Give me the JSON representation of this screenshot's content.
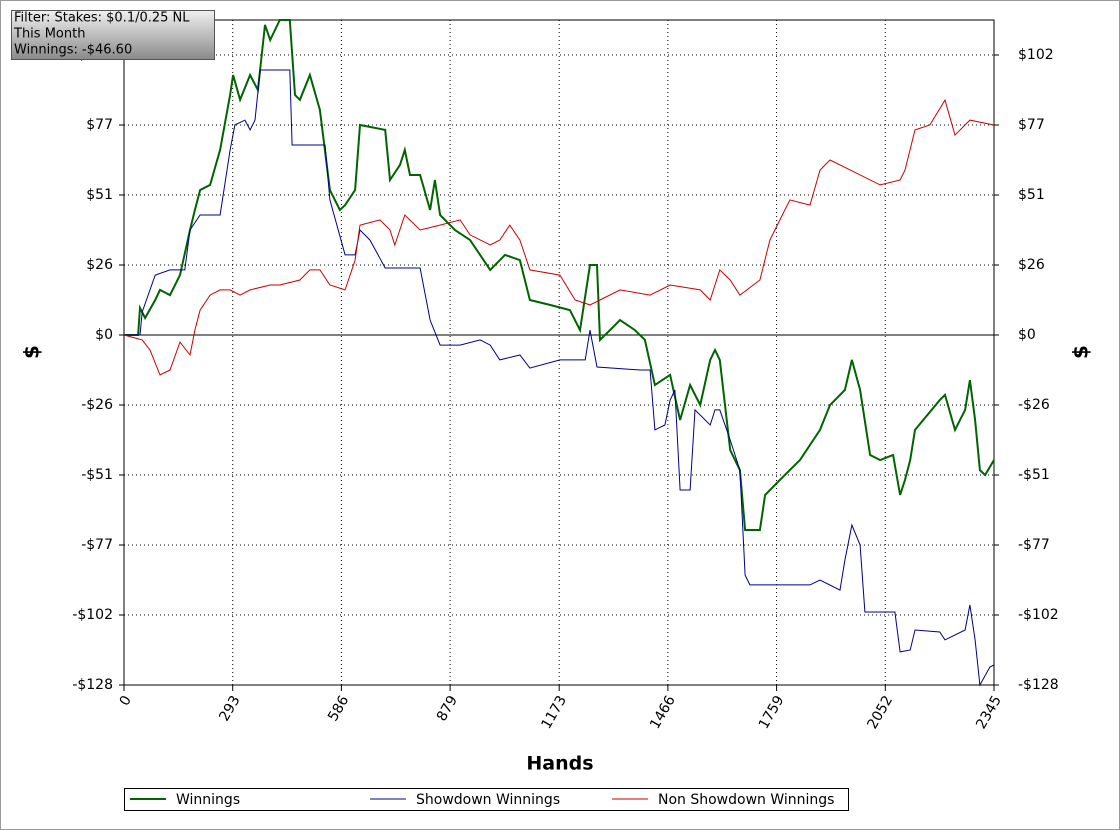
{
  "chart_data": {
    "type": "line",
    "annotations": [
      "Filter: Stakes: $0.1/0.25 NL",
      "This Month",
      "Winnings: -$46.60"
    ],
    "xlabel": "Hands",
    "ylabel": "$",
    "xlim": [
      0,
      2345
    ],
    "ylim": [
      -128,
      115.2
    ],
    "xticks": [
      0,
      293,
      586,
      879,
      1173,
      1466,
      1759,
      2052,
      2345
    ],
    "yticks": [
      {
        "value": -128,
        "label": "-$128"
      },
      {
        "value": -102.4,
        "label": "-$102"
      },
      {
        "value": -76.8,
        "label": "-$77"
      },
      {
        "value": -51.2,
        "label": "-$51"
      },
      {
        "value": -25.6,
        "label": "-$26"
      },
      {
        "value": 0,
        "label": "$0"
      },
      {
        "value": 25.6,
        "label": "$26"
      },
      {
        "value": 51.2,
        "label": "$51"
      },
      {
        "value": 76.8,
        "label": "$77"
      },
      {
        "value": 102.4,
        "label": "$102"
      }
    ],
    "grid": true,
    "legend": "bottom",
    "series": [
      {
        "name": "Winnings",
        "color": "#006400",
        "width": 2,
        "x": [
          0,
          38,
          43,
          57,
          84,
          97,
          124,
          151,
          178,
          191,
          205,
          232,
          259,
          286,
          294,
          313,
          340,
          361,
          380,
          394,
          420,
          447,
          461,
          474,
          501,
          528,
          555,
          582,
          596,
          623,
          636,
          704,
          717,
          744,
          757,
          771,
          798,
          825,
          838,
          852,
          892,
          933,
          987,
          1027,
          1067,
          1094,
          1148,
          1202,
          1229,
          1256,
          1275,
          1283,
          1310,
          1337,
          1377,
          1404,
          1431,
          1472,
          1499,
          1526,
          1553,
          1580,
          1593,
          1606,
          1634,
          1660,
          1674,
          1714,
          1728,
          1768,
          1822,
          1876,
          1903,
          1943,
          1962,
          1984,
          2011,
          2038,
          2073,
          2092,
          2105,
          2119,
          2132,
          2199,
          2213,
          2240,
          2267,
          2280,
          2294,
          2307,
          2321,
          2345
        ],
        "values": [
          0,
          0,
          9.9,
          6.2,
          12.8,
          16.5,
          14.6,
          21.9,
          38.4,
          45.7,
          53.0,
          54.9,
          67.7,
          87.8,
          95.1,
          86.0,
          95.1,
          89.6,
          113.4,
          107.9,
          115.2,
          115.2,
          87.8,
          86.0,
          95.1,
          82.3,
          53.0,
          45.7,
          47.5,
          53.0,
          76.8,
          75.0,
          56.7,
          62.2,
          67.7,
          58.5,
          58.5,
          45.7,
          56.7,
          43.9,
          38.4,
          34.7,
          23.8,
          29.3,
          27.4,
          12.8,
          11.0,
          9.1,
          1.8,
          25.6,
          25.6,
          -1.8,
          1.8,
          5.5,
          1.8,
          -1.8,
          -18.3,
          -14.6,
          -31.1,
          -18.3,
          -25.6,
          -9.1,
          -5.5,
          -9.1,
          -42.1,
          -49.4,
          -71.3,
          -71.3,
          -58.5,
          -53.0,
          -45.7,
          -34.7,
          -25.6,
          -20.1,
          -9.1,
          -20.1,
          -43.9,
          -45.7,
          -43.9,
          -58.5,
          -53.0,
          -45.7,
          -34.7,
          -23.8,
          -21.9,
          -34.7,
          -27.4,
          -16.5,
          -31.1,
          -49.4,
          -51.2,
          -45.7
        ]
      },
      {
        "name": "Showdown Winnings",
        "color": "#00008b",
        "width": 1,
        "x": [
          0,
          43,
          49,
          84,
          124,
          164,
          178,
          205,
          259,
          286,
          299,
          326,
          340,
          353,
          367,
          447,
          453,
          542,
          555,
          596,
          623,
          636,
          663,
          704,
          798,
          825,
          852,
          906,
          960,
          987,
          1013,
          1067,
          1094,
          1175,
          1243,
          1256,
          1275,
          1391,
          1418,
          1431,
          1458,
          1472,
          1485,
          1499,
          1526,
          1539,
          1580,
          1593,
          1606,
          1634,
          1660,
          1674,
          1687,
          1849,
          1876,
          1930,
          1943,
          1962,
          1984,
          1997,
          2078,
          2092,
          2119,
          2132,
          2199,
          2213,
          2267,
          2280,
          2294,
          2307,
          2334,
          2345
        ],
        "values": [
          0,
          0,
          8.4,
          21.9,
          23.8,
          23.8,
          38.4,
          43.9,
          43.9,
          67.7,
          76.8,
          78.6,
          75.0,
          78.6,
          96.9,
          96.9,
          69.5,
          69.5,
          49.4,
          29.3,
          29.3,
          38.4,
          34.7,
          24.5,
          24.5,
          5.5,
          -3.7,
          -3.7,
          -1.8,
          -3.7,
          -9.1,
          -7.3,
          -12.1,
          -9.1,
          -9.1,
          1.8,
          -11.7,
          -12.8,
          -12.8,
          -34.7,
          -32.9,
          -23.8,
          -20.1,
          -56.7,
          -56.7,
          -27.4,
          -32.9,
          -27.4,
          -27.4,
          -38.4,
          -49.4,
          -87.8,
          -91.4,
          -91.4,
          -89.6,
          -93.3,
          -82.3,
          -69.5,
          -76.8,
          -101.3,
          -101.3,
          -115.9,
          -115.2,
          -107.9,
          -108.6,
          -111.5,
          -107.9,
          -98.7,
          -111.5,
          -128,
          -121.4,
          -120.7
        ]
      },
      {
        "name": "Non Showdown Winnings",
        "color": "#cc0000",
        "width": 1,
        "x": [
          0,
          49,
          70,
          97,
          124,
          151,
          178,
          191,
          205,
          232,
          259,
          286,
          313,
          340,
          394,
          420,
          474,
          501,
          528,
          555,
          596,
          623,
          636,
          690,
          717,
          730,
          757,
          798,
          852,
          906,
          933,
          987,
          1013,
          1040,
          1067,
          1094,
          1175,
          1216,
          1256,
          1283,
          1337,
          1418,
          1472,
          1553,
          1580,
          1606,
          1634,
          1660,
          1714,
          1741,
          1768,
          1795,
          1849,
          1876,
          1903,
          1930,
          2038,
          2092,
          2105,
          2132,
          2172,
          2213,
          2240,
          2280,
          2345
        ],
        "values": [
          0,
          -1.8,
          -5.5,
          -14.6,
          -12.8,
          -2.6,
          -7.3,
          1.8,
          9.1,
          14.6,
          16.5,
          16.5,
          14.6,
          16.5,
          18.3,
          18.3,
          20.1,
          23.8,
          23.8,
          18.3,
          16.5,
          27.4,
          40.2,
          42.1,
          38.4,
          32.9,
          43.9,
          38.4,
          40.2,
          42.1,
          36.6,
          32.9,
          34.7,
          40.2,
          34.7,
          23.8,
          21.9,
          12.8,
          11.0,
          12.8,
          16.5,
          14.6,
          18.3,
          16.5,
          12.8,
          23.8,
          20.1,
          14.6,
          20.1,
          34.7,
          42.1,
          49.4,
          47.5,
          60.3,
          64.0,
          62.2,
          54.9,
          56.7,
          60.3,
          75.0,
          76.8,
          85.9,
          73.1,
          78.6,
          76.8
        ]
      }
    ]
  }
}
